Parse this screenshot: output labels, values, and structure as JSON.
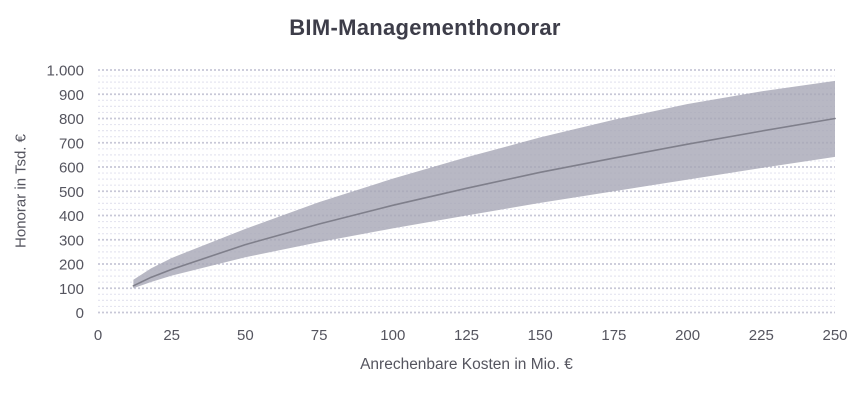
{
  "chart_data": {
    "type": "area",
    "title": "BIM-Managementhonorar",
    "xlabel": "Anrechenbare Kosten in Mio. €",
    "ylabel": "Honorar in Tsd. €",
    "xlim": [
      0,
      250
    ],
    "ylim": [
      0,
      1000
    ],
    "x_ticks": [
      0,
      25,
      50,
      75,
      100,
      125,
      150,
      175,
      200,
      225,
      250
    ],
    "y_ticks": [
      0,
      100,
      200,
      300,
      400,
      500,
      600,
      700,
      800,
      900,
      1000
    ],
    "y_tick_labels": [
      "0",
      "100",
      "200",
      "300",
      "400",
      "500",
      "600",
      "700",
      "800",
      "900",
      "1.000"
    ],
    "y_minor_step": 25,
    "grid": {
      "horizontal_major": true,
      "horizontal_minor": true,
      "vertical": false,
      "style": "dashed"
    },
    "legend": "none",
    "x": [
      12,
      18,
      25,
      50,
      75,
      100,
      125,
      150,
      175,
      200,
      225,
      250
    ],
    "series": [
      {
        "name": "band_lower",
        "values": [
          100,
          126,
          152,
          228,
          290,
          347,
          400,
          452,
          500,
          548,
          596,
          642
        ]
      },
      {
        "name": "band_center",
        "values": [
          110,
          145,
          178,
          280,
          365,
          442,
          512,
          578,
          637,
          694,
          748,
          800
        ]
      },
      {
        "name": "band_upper",
        "values": [
          135,
          182,
          225,
          345,
          455,
          552,
          640,
          722,
          795,
          860,
          912,
          955
        ]
      }
    ],
    "colors": {
      "band_fill": "#a6a6b5",
      "band_opacity": 0.8,
      "center_line": "#7f7f8b",
      "grid_major": "#c8c8d7",
      "grid_minor": "#e5e5f0",
      "title_text": "#3d3d49",
      "axis_text": "#55555f"
    }
  }
}
